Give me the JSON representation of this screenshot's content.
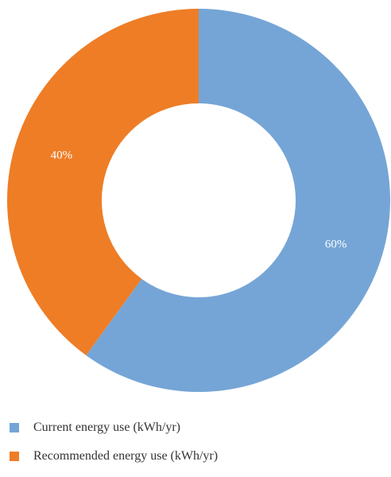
{
  "chart_data": {
    "type": "pie",
    "donut": true,
    "title": "",
    "categories": [
      "Current energy use (kWh/yr)",
      "Recommended energy use (kWh/yr)"
    ],
    "values": [
      60,
      40
    ],
    "labels": [
      "60%",
      "40%"
    ],
    "colors": [
      "#75a5d6",
      "#ee7d26"
    ],
    "legend_position": "bottom-left",
    "start_angle_deg": 0,
    "direction": "clockwise"
  }
}
